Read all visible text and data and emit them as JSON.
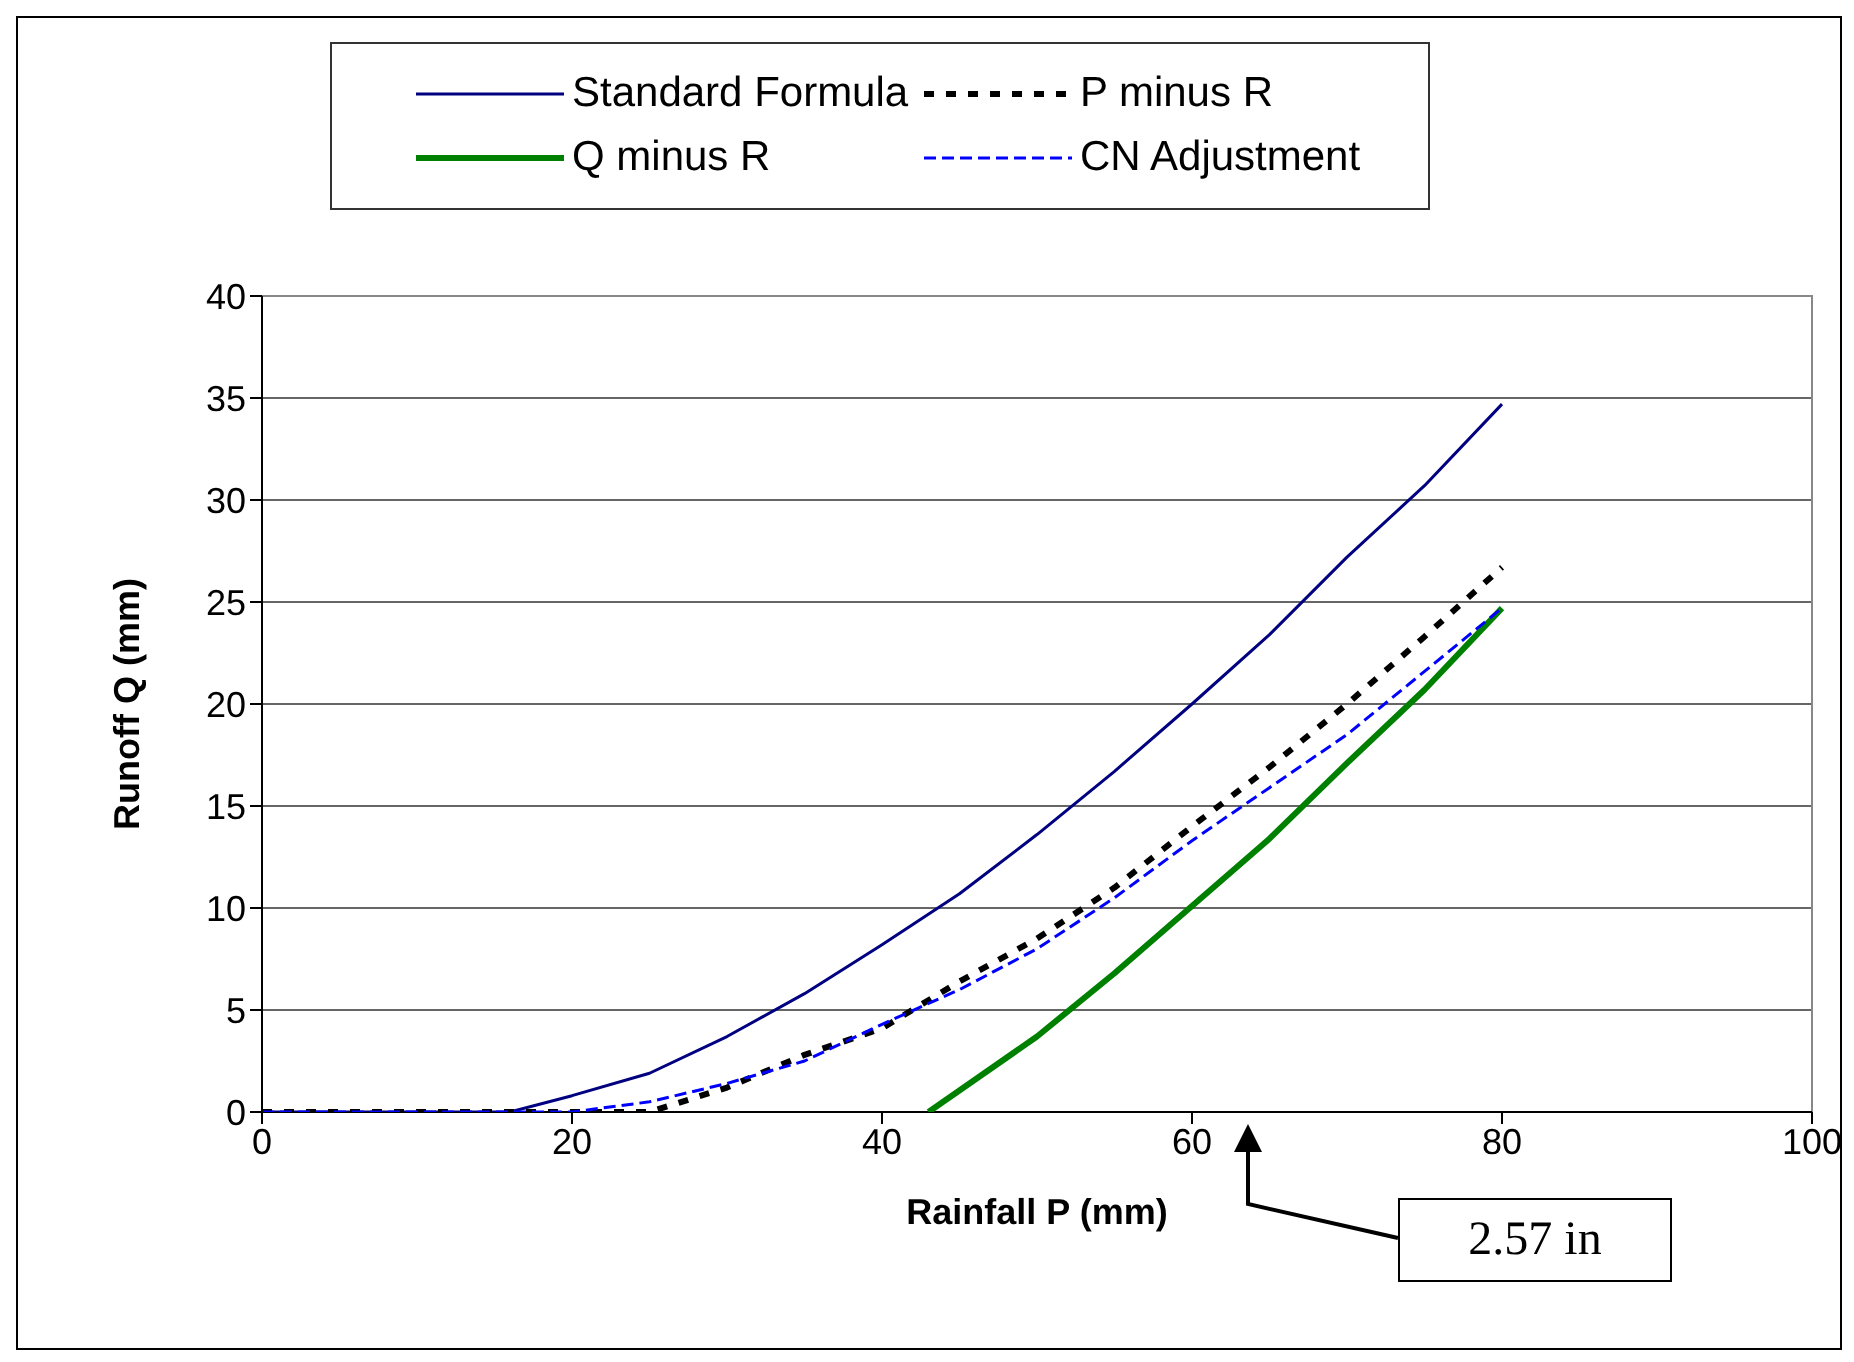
{
  "chart_data": {
    "type": "line",
    "xlabel": "Rainfall P (mm)",
    "ylabel": "Runoff Q (mm)",
    "xlim": [
      0,
      100
    ],
    "xticks": [
      0,
      20,
      40,
      60,
      80,
      100
    ],
    "ylim": [
      0,
      40
    ],
    "yticks": [
      0,
      5,
      10,
      15,
      20,
      25,
      30,
      35,
      40
    ],
    "grid": "y",
    "legend": "top",
    "marker": "none",
    "annotations": [
      "2.57 in"
    ],
    "series": [
      {
        "name": "Standard Formula",
        "color": "#000080",
        "line_style": "solid",
        "x": [
          0,
          5,
          10,
          16,
          20,
          25,
          30,
          35,
          40,
          45,
          50,
          55,
          60,
          65,
          70,
          75,
          80
        ],
        "values": [
          0,
          0,
          0,
          0,
          0.8,
          1.9,
          3.7,
          5.8,
          8.2,
          10.7,
          13.6,
          16.7,
          20,
          23.4,
          27.2,
          30.7,
          34.7
        ]
      },
      {
        "name": "P minus R",
        "color": "#000000",
        "line_style": "dotted",
        "x": [
          0,
          5,
          10,
          15,
          20,
          25,
          30,
          35,
          40,
          45,
          50,
          55,
          60,
          65,
          70,
          75,
          80
        ],
        "values": [
          0,
          0,
          0,
          0,
          0,
          0,
          1.2,
          2.8,
          4.1,
          6.4,
          8.5,
          11,
          14,
          16.9,
          20,
          23.3,
          26.7
        ]
      },
      {
        "name": "Q minus R",
        "color": "#008000",
        "line_style": "solid",
        "x": [
          43,
          50,
          55,
          60,
          65,
          70,
          75,
          80
        ],
        "values": [
          0,
          3.7,
          6.8,
          10.1,
          13.4,
          17.1,
          20.7,
          24.7
        ]
      },
      {
        "name": "CN Adjustment",
        "color": "#0000ff",
        "line_style": "dashed",
        "x": [
          0,
          5,
          10,
          15,
          20,
          25,
          30,
          35,
          40,
          45,
          50,
          55,
          60,
          65,
          70,
          75,
          80
        ],
        "values": [
          0,
          0,
          0,
          0,
          0,
          0.5,
          1.4,
          2.5,
          4.3,
          6,
          8,
          10.5,
          13.3,
          15.9,
          18.5,
          21.6,
          24.7
        ]
      }
    ]
  }
}
